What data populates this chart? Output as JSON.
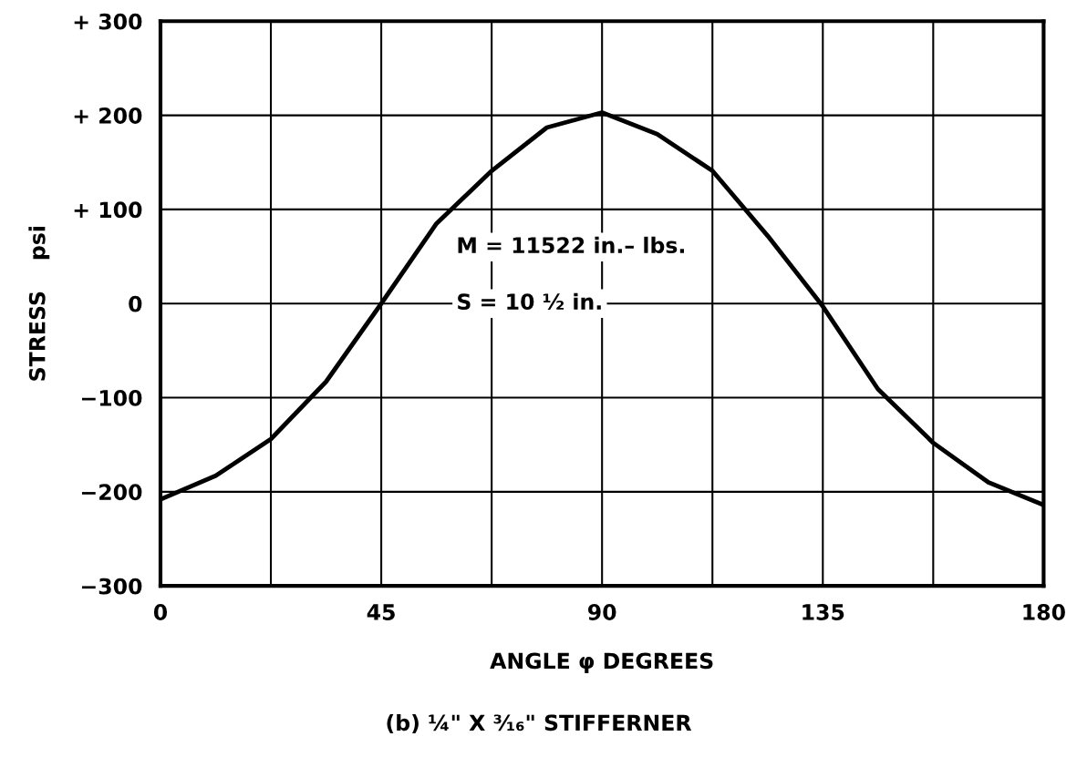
{
  "chart_data": {
    "type": "line",
    "title": "(b) ¼\" X ³⁄₁₆\" STIFFERNER",
    "xlabel": "ANGLE φ DEGREES",
    "ylabel": "STRESS    psi",
    "x": [
      0,
      11.25,
      22.5,
      33.75,
      45,
      56.25,
      67.5,
      78.75,
      90,
      101.25,
      112.5,
      123.75,
      135,
      146.25,
      157.5,
      168.75,
      180
    ],
    "series": [
      {
        "color": "#000000",
        "values": [
          -208,
          -183,
          -144,
          -83,
          0,
          85,
          141,
          187,
          203,
          180,
          141,
          72,
          -3,
          -91,
          -148,
          -190,
          -214
        ]
      }
    ],
    "xlim": [
      0,
      180
    ],
    "ylim": [
      -300,
      300
    ],
    "xticks": [
      0,
      {
        "value": 22.5,
        "label": null
      },
      45,
      {
        "value": 67.5,
        "label": null
      },
      90,
      {
        "value": 112.5,
        "label": null
      },
      135,
      {
        "value": 157.5,
        "label": null
      },
      180
    ],
    "yticks": [
      {
        "value": -300,
        "label": "−300"
      },
      {
        "value": -200,
        "label": "−200"
      },
      {
        "value": -100,
        "label": "−100"
      },
      0,
      {
        "value": 100,
        "label": "+ 100"
      },
      {
        "value": 200,
        "label": "+ 200"
      },
      {
        "value": 300,
        "label": "+ 300"
      }
    ],
    "grid": true,
    "marker": "none",
    "line_style": "solid",
    "annotations": [
      "M = 11522 in.– lbs.",
      "S = 10 ½ in."
    ]
  }
}
